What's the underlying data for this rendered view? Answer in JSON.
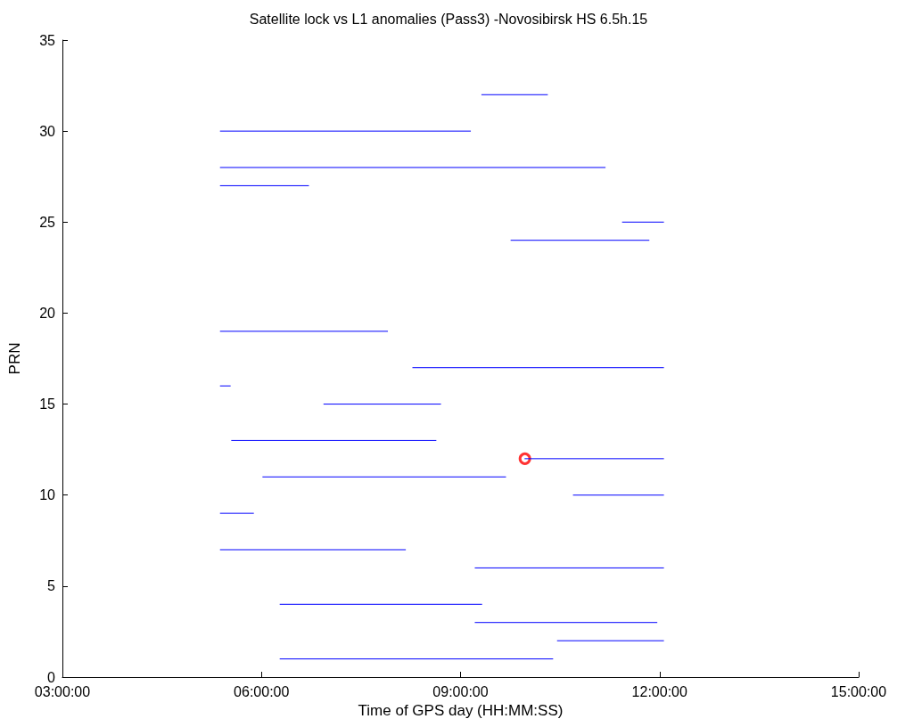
{
  "chart_data": {
    "type": "line",
    "title": "Satellite lock vs L1 anomalies (Pass3) -Novosibirsk HS 6.5h.15",
    "xlabel": "Time of GPS day (HH:MM:SS)",
    "ylabel": "PRN",
    "xlim": [
      3,
      15
    ],
    "xticks": [
      {
        "value": 3,
        "label": "03:00:00"
      },
      {
        "value": 6,
        "label": "06:00:00"
      },
      {
        "value": 9,
        "label": "09:00:00"
      },
      {
        "value": 12,
        "label": "12:00:00"
      },
      {
        "value": 15,
        "label": "15:00:00"
      }
    ],
    "ylim": [
      0,
      35
    ],
    "yticks": [
      0,
      5,
      10,
      15,
      20,
      25,
      30,
      35
    ],
    "grid": false,
    "marker": "none",
    "line_style": "solid",
    "series": [
      {
        "color": "#0000ff",
        "x": [
          9.32,
          10.31
        ],
        "values": [
          32,
          32
        ]
      },
      {
        "color": "#0000ff",
        "x": [
          5.38,
          9.15
        ],
        "values": [
          30,
          30
        ]
      },
      {
        "color": "#0000ff",
        "x": [
          5.38,
          11.18
        ],
        "values": [
          28,
          28
        ]
      },
      {
        "color": "#0000ff",
        "x": [
          5.38,
          6.71
        ],
        "values": [
          27,
          27
        ]
      },
      {
        "color": "#0000ff",
        "x": [
          11.44,
          12.06
        ],
        "values": [
          25,
          25
        ]
      },
      {
        "color": "#0000ff",
        "x": [
          9.76,
          11.84
        ],
        "values": [
          24,
          24
        ]
      },
      {
        "color": "#0000ff",
        "x": [
          5.38,
          7.9
        ],
        "values": [
          19,
          19
        ]
      },
      {
        "color": "#0000ff",
        "x": [
          8.28,
          12.06
        ],
        "values": [
          17,
          17
        ]
      },
      {
        "color": "#0000ff",
        "x": [
          5.38,
          5.53
        ],
        "values": [
          16,
          16
        ]
      },
      {
        "color": "#0000ff",
        "x": [
          6.94,
          8.7
        ],
        "values": [
          15,
          15
        ]
      },
      {
        "color": "#0000ff",
        "x": [
          5.55,
          8.63
        ],
        "values": [
          13,
          13
        ]
      },
      {
        "color": "#0000ff",
        "x": [
          9.97,
          12.06
        ],
        "values": [
          12,
          12
        ]
      },
      {
        "color": "#0000ff",
        "x": [
          6.02,
          9.68
        ],
        "values": [
          11,
          11
        ]
      },
      {
        "color": "#0000ff",
        "x": [
          10.7,
          12.06
        ],
        "values": [
          10,
          10
        ]
      },
      {
        "color": "#0000ff",
        "x": [
          5.38,
          5.88
        ],
        "values": [
          9,
          9
        ]
      },
      {
        "color": "#0000ff",
        "x": [
          5.38,
          8.17
        ],
        "values": [
          7,
          7
        ]
      },
      {
        "color": "#0000ff",
        "x": [
          9.22,
          12.06
        ],
        "values": [
          6,
          6
        ]
      },
      {
        "color": "#0000ff",
        "x": [
          6.28,
          9.32
        ],
        "values": [
          4,
          4
        ]
      },
      {
        "color": "#0000ff",
        "x": [
          9.22,
          11.96
        ],
        "values": [
          3,
          3
        ]
      },
      {
        "color": "#0000ff",
        "x": [
          10.46,
          12.06
        ],
        "values": [
          2,
          2
        ]
      },
      {
        "color": "#0000ff",
        "x": [
          6.28,
          10.39
        ],
        "values": [
          1,
          1
        ]
      },
      {
        "type": "scatter",
        "marker": "circle",
        "color": "#ff0000",
        "x": [
          9.97
        ],
        "values": [
          12
        ]
      }
    ]
  }
}
